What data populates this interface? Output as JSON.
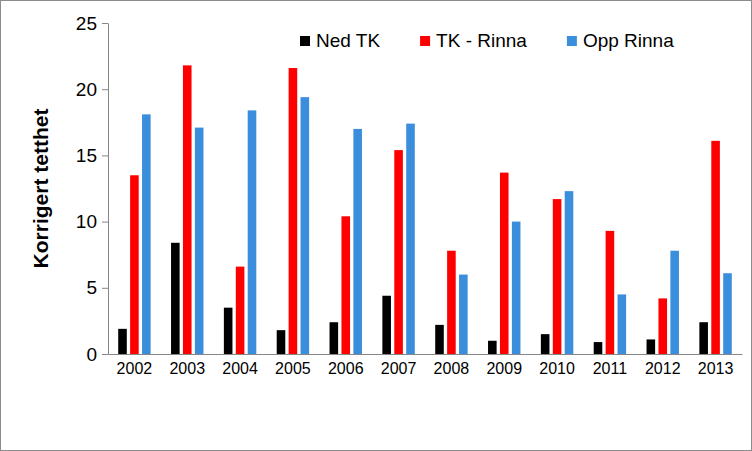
{
  "chart_data": {
    "type": "bar",
    "y_label": "Korrigert tetthet",
    "categories": [
      "2002",
      "2003",
      "2004",
      "2005",
      "2006",
      "2007",
      "2008",
      "2009",
      "2010",
      "2011",
      "2012",
      "2013"
    ],
    "series": [
      {
        "name": "Ned TK",
        "color": "#000000",
        "values": [
          1.9,
          8.4,
          3.5,
          1.8,
          2.4,
          4.4,
          2.2,
          1.0,
          1.5,
          0.9,
          1.1,
          2.4
        ]
      },
      {
        "name": "TK - Rinna",
        "color": "#ff0000",
        "values": [
          13.5,
          21.8,
          6.6,
          21.6,
          10.4,
          15.4,
          7.8,
          13.7,
          11.7,
          9.3,
          4.2,
          16.1
        ]
      },
      {
        "name": "Opp Rinna",
        "color": "#3a8edb",
        "values": [
          18.1,
          17.1,
          18.4,
          19.4,
          17.0,
          17.4,
          6.0,
          10.0,
          12.3,
          4.5,
          7.8,
          6.1
        ]
      }
    ],
    "ylim": [
      0,
      25
    ],
    "yticks": [
      0,
      5,
      10,
      15,
      20,
      25
    ],
    "grid": false,
    "legend": "top-right"
  }
}
